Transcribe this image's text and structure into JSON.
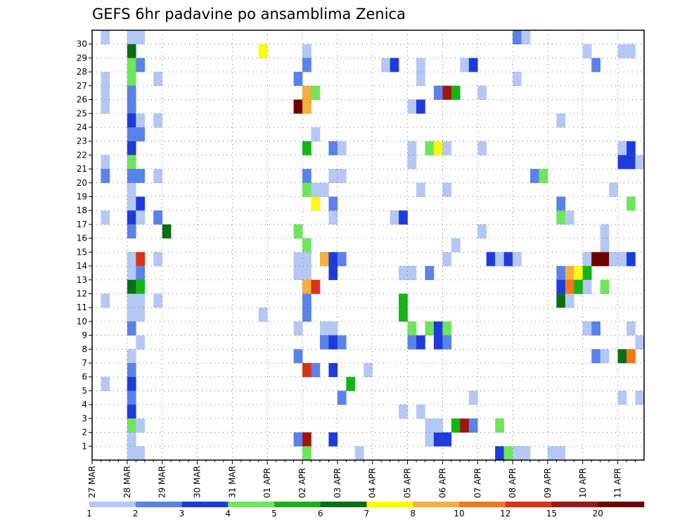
{
  "chart_data": {
    "type": "heatmap",
    "title": "GEFS 6hr padavine po ansamblima Zenica",
    "xlabel": "",
    "ylabel": "",
    "x_ticks": [
      "27 MAR",
      "28 MAR",
      "29 MAR",
      "30 MAR",
      "31 MAR",
      "01 APR",
      "02 APR",
      "03 APR",
      "04 APR",
      "05 APR",
      "06 APR",
      "07 APR",
      "08 APR",
      "09 APR",
      "10 APR",
      "11 APR"
    ],
    "y_ticks": [
      "1",
      "2",
      "3",
      "4",
      "5",
      "6",
      "7",
      "8",
      "9",
      "10",
      "11",
      "12",
      "13",
      "14",
      "15",
      "16",
      "17",
      "18",
      "19",
      "20",
      "21",
      "22",
      "23",
      "24",
      "25",
      "26",
      "27",
      "28",
      "29",
      "30"
    ],
    "x_unit_note": "x values are steps of 6 hours counted from 27 MAR 00Z; y values are ensemble member numbers",
    "legend": {
      "levels": [
        "1",
        "2",
        "3",
        "4",
        "5",
        "6",
        "7",
        "8",
        "10",
        "12",
        "15",
        "20"
      ],
      "colors": [
        "#b4c8f5",
        "#5a82eb",
        "#1e3cdc",
        "#6ee65a",
        "#14b414",
        "#0a6e14",
        "#fafa14",
        "#f5af3c",
        "#f57814",
        "#dc3214",
        "#a01414",
        "#6e0000"
      ]
    },
    "grid": true,
    "cells": [
      [
        1,
        30,
        0
      ],
      [
        1,
        27,
        0
      ],
      [
        1,
        26,
        0
      ],
      [
        1,
        25,
        0
      ],
      [
        1,
        21,
        0
      ],
      [
        1,
        20,
        1
      ],
      [
        1,
        17,
        0
      ],
      [
        1,
        11,
        0
      ],
      [
        1,
        5,
        0
      ],
      [
        4,
        30,
        0
      ],
      [
        4,
        29,
        5
      ],
      [
        4,
        28,
        3
      ],
      [
        4,
        27,
        3
      ],
      [
        4,
        26,
        1
      ],
      [
        4,
        25,
        1
      ],
      [
        4,
        24,
        2
      ],
      [
        4,
        23,
        1
      ],
      [
        4,
        22,
        2
      ],
      [
        4,
        21,
        3
      ],
      [
        4,
        20,
        1
      ],
      [
        4,
        19,
        0
      ],
      [
        4,
        18,
        0
      ],
      [
        4,
        17,
        2
      ],
      [
        4,
        16,
        1
      ],
      [
        4,
        14,
        0
      ],
      [
        4,
        13,
        0
      ],
      [
        4,
        12,
        5
      ],
      [
        4,
        11,
        0
      ],
      [
        4,
        10,
        0
      ],
      [
        4,
        9,
        1
      ],
      [
        4,
        7,
        0
      ],
      [
        4,
        6,
        1
      ],
      [
        4,
        5,
        2
      ],
      [
        4,
        4,
        1
      ],
      [
        4,
        3,
        2
      ],
      [
        4,
        2,
        3
      ],
      [
        4,
        1,
        0
      ],
      [
        4,
        0,
        0
      ],
      [
        5,
        30,
        0
      ],
      [
        5,
        28,
        1
      ],
      [
        5,
        24,
        0
      ],
      [
        5,
        23,
        1
      ],
      [
        5,
        20,
        1
      ],
      [
        5,
        18,
        2
      ],
      [
        5,
        17,
        0
      ],
      [
        5,
        14,
        9
      ],
      [
        5,
        13,
        1
      ],
      [
        5,
        12,
        4
      ],
      [
        5,
        11,
        0
      ],
      [
        5,
        10,
        0
      ],
      [
        5,
        8,
        0
      ],
      [
        5,
        2,
        0
      ],
      [
        5,
        0,
        0
      ],
      [
        7,
        27,
        0
      ],
      [
        7,
        24,
        0
      ],
      [
        7,
        20,
        0
      ],
      [
        7,
        17,
        1
      ],
      [
        7,
        14,
        0
      ],
      [
        7,
        11,
        0
      ],
      [
        8,
        16,
        5
      ],
      [
        19,
        29,
        6
      ],
      [
        19,
        10,
        0
      ],
      [
        23,
        27,
        1
      ],
      [
        23,
        25,
        11
      ],
      [
        23,
        16,
        3
      ],
      [
        23,
        14,
        0
      ],
      [
        23,
        13,
        0
      ],
      [
        23,
        9,
        0
      ],
      [
        23,
        7,
        1
      ],
      [
        23,
        1,
        1
      ],
      [
        24,
        29,
        0
      ],
      [
        24,
        28,
        1
      ],
      [
        24,
        26,
        7
      ],
      [
        24,
        25,
        7
      ],
      [
        24,
        22,
        4
      ],
      [
        24,
        20,
        1
      ],
      [
        24,
        19,
        3
      ],
      [
        24,
        15,
        3
      ],
      [
        24,
        14,
        0
      ],
      [
        24,
        13,
        0
      ],
      [
        24,
        12,
        7
      ],
      [
        24,
        11,
        1
      ],
      [
        24,
        10,
        1
      ],
      [
        24,
        6,
        9
      ],
      [
        24,
        1,
        10
      ],
      [
        24,
        0,
        3
      ],
      [
        25,
        26,
        3
      ],
      [
        25,
        23,
        0
      ],
      [
        25,
        19,
        0
      ],
      [
        25,
        18,
        6
      ],
      [
        25,
        12,
        9
      ],
      [
        25,
        6,
        1
      ],
      [
        26,
        19,
        0
      ],
      [
        26,
        14,
        7
      ],
      [
        26,
        9,
        0
      ],
      [
        26,
        8,
        1
      ],
      [
        27,
        22,
        1
      ],
      [
        27,
        20,
        0
      ],
      [
        27,
        18,
        1
      ],
      [
        27,
        17,
        0
      ],
      [
        27,
        14,
        2
      ],
      [
        27,
        13,
        2
      ],
      [
        27,
        9,
        0
      ],
      [
        27,
        8,
        2
      ],
      [
        27,
        6,
        2
      ],
      [
        27,
        1,
        2
      ],
      [
        28,
        22,
        0
      ],
      [
        28,
        20,
        0
      ],
      [
        28,
        14,
        1
      ],
      [
        28,
        8,
        1
      ],
      [
        28,
        4,
        1
      ],
      [
        29,
        5,
        4
      ],
      [
        30,
        0,
        0
      ],
      [
        31,
        6,
        0
      ],
      [
        33,
        28,
        0
      ],
      [
        34,
        28,
        2
      ],
      [
        34,
        17,
        0
      ],
      [
        35,
        17,
        2
      ],
      [
        35,
        13,
        0
      ],
      [
        35,
        11,
        4
      ],
      [
        35,
        10,
        4
      ],
      [
        35,
        3,
        0
      ],
      [
        36,
        25,
        0
      ],
      [
        36,
        22,
        0
      ],
      [
        36,
        21,
        0
      ],
      [
        36,
        13,
        0
      ],
      [
        36,
        9,
        3
      ],
      [
        36,
        8,
        1
      ],
      [
        37,
        28,
        0
      ],
      [
        37,
        27,
        0
      ],
      [
        37,
        25,
        2
      ],
      [
        37,
        19,
        0
      ],
      [
        37,
        8,
        2
      ],
      [
        37,
        3,
        0
      ],
      [
        38,
        22,
        3
      ],
      [
        38,
        9,
        3
      ],
      [
        38,
        13,
        1
      ],
      [
        38,
        2,
        0
      ],
      [
        38,
        1,
        0
      ],
      [
        39,
        26,
        1
      ],
      [
        39,
        22,
        6
      ],
      [
        39,
        9,
        2
      ],
      [
        39,
        8,
        2
      ],
      [
        39,
        1,
        2
      ],
      [
        39,
        2,
        0
      ],
      [
        40,
        26,
        10
      ],
      [
        40,
        22,
        0
      ],
      [
        40,
        19,
        0
      ],
      [
        40,
        14,
        0
      ],
      [
        40,
        9,
        3
      ],
      [
        40,
        8,
        1
      ],
      [
        40,
        1,
        2
      ],
      [
        41,
        26,
        4
      ],
      [
        41,
        2,
        4
      ],
      [
        41,
        15,
        0
      ],
      [
        42,
        28,
        0
      ],
      [
        42,
        2,
        10
      ],
      [
        43,
        28,
        2
      ],
      [
        43,
        2,
        1
      ],
      [
        43,
        4,
        0
      ],
      [
        44,
        26,
        0
      ],
      [
        44,
        22,
        0
      ],
      [
        44,
        16,
        0
      ],
      [
        45,
        14,
        2
      ],
      [
        46,
        14,
        0
      ],
      [
        46,
        2,
        3
      ],
      [
        46,
        0,
        2
      ],
      [
        47,
        14,
        2
      ],
      [
        47,
        0,
        3
      ],
      [
        48,
        30,
        1
      ],
      [
        48,
        27,
        0
      ],
      [
        48,
        14,
        0
      ],
      [
        48,
        0,
        0
      ],
      [
        49,
        30,
        0
      ],
      [
        49,
        0,
        0
      ],
      [
        50,
        20,
        1
      ],
      [
        51,
        20,
        3
      ],
      [
        52,
        0,
        0
      ],
      [
        53,
        24,
        0
      ],
      [
        53,
        18,
        1
      ],
      [
        53,
        17,
        3
      ],
      [
        53,
        13,
        1
      ],
      [
        53,
        12,
        2
      ],
      [
        53,
        11,
        5
      ],
      [
        53,
        0,
        0
      ],
      [
        54,
        17,
        0
      ],
      [
        54,
        13,
        7
      ],
      [
        54,
        12,
        8
      ],
      [
        54,
        11,
        0
      ],
      [
        55,
        13,
        6
      ],
      [
        55,
        12,
        4
      ],
      [
        56,
        29,
        0
      ],
      [
        56,
        14,
        0
      ],
      [
        56,
        13,
        4
      ],
      [
        56,
        12,
        0
      ],
      [
        56,
        9,
        0
      ],
      [
        57,
        28,
        1
      ],
      [
        57,
        14,
        11
      ],
      [
        57,
        9,
        1
      ],
      [
        57,
        7,
        1
      ],
      [
        58,
        16,
        0
      ],
      [
        58,
        15,
        0
      ],
      [
        58,
        14,
        11
      ],
      [
        58,
        12,
        3
      ],
      [
        58,
        7,
        0
      ],
      [
        59,
        14,
        0
      ],
      [
        59,
        19,
        0
      ],
      [
        60,
        29,
        0
      ],
      [
        60,
        22,
        0
      ],
      [
        60,
        21,
        2
      ],
      [
        60,
        14,
        0
      ],
      [
        60,
        7,
        5
      ],
      [
        60,
        4,
        0
      ],
      [
        61,
        29,
        0
      ],
      [
        61,
        22,
        2
      ],
      [
        61,
        21,
        2
      ],
      [
        61,
        18,
        3
      ],
      [
        61,
        14,
        2
      ],
      [
        61,
        9,
        0
      ],
      [
        61,
        7,
        8
      ],
      [
        62,
        8,
        0
      ],
      [
        62,
        4,
        0
      ],
      [
        62,
        21,
        0
      ]
    ]
  }
}
